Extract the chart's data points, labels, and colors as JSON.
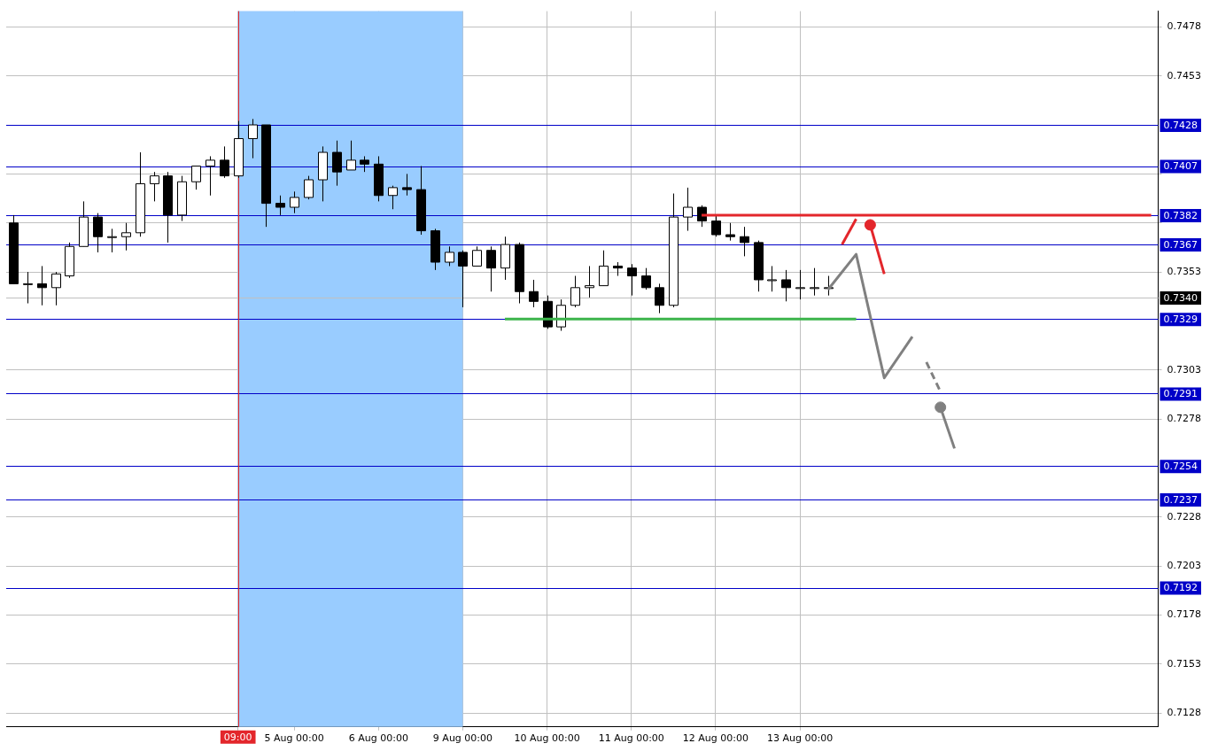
{
  "chart_data": {
    "type": "candlestick",
    "categories": [
      null,
      null,
      null,
      null,
      null,
      null,
      null,
      null,
      null,
      null,
      null,
      null,
      null,
      null,
      null,
      null,
      "09:00",
      null,
      null,
      null,
      "5 Aug 00:00",
      null,
      null,
      null,
      null,
      null,
      "6 Aug 00:00",
      null,
      null,
      null,
      null,
      null,
      "9 Aug 00:00",
      null,
      null,
      null,
      null,
      null,
      "10 Aug 00:00",
      null,
      null,
      null,
      null,
      null,
      "11 Aug 00:00",
      null,
      null,
      null,
      null,
      null,
      "12 Aug 00:00",
      null,
      null,
      null,
      null,
      null,
      "13 Aug 00:00",
      null,
      null,
      null,
      null,
      null,
      null,
      null,
      null,
      null,
      null,
      null,
      null,
      null,
      null,
      null,
      null,
      null,
      null,
      null,
      null,
      null,
      null,
      null,
      null,
      null
    ],
    "ohlc": [
      [
        0.7378,
        0.7382,
        0.7347,
        0.7347
      ],
      [
        0.7347,
        0.7353,
        0.7337,
        0.7347
      ],
      [
        0.7347,
        0.7356,
        0.7336,
        0.7345
      ],
      [
        0.7345,
        0.7353,
        0.7336,
        0.7352
      ],
      [
        0.7351,
        0.7368,
        0.735,
        0.7366
      ],
      [
        0.7366,
        0.7389,
        0.7366,
        0.7381
      ],
      [
        0.7381,
        0.7383,
        0.7363,
        0.7371
      ],
      [
        0.7371,
        0.7375,
        0.7363,
        0.7371
      ],
      [
        0.7371,
        0.7378,
        0.7364,
        0.7373
      ],
      [
        0.7373,
        0.7414,
        0.7371,
        0.7398
      ],
      [
        0.7398,
        0.7404,
        0.7389,
        0.7402
      ],
      [
        0.7402,
        0.7404,
        0.7368,
        0.7382
      ],
      [
        0.7382,
        0.7402,
        0.7379,
        0.7399
      ],
      [
        0.7399,
        0.7407,
        0.7395,
        0.7407
      ],
      [
        0.7407,
        0.7412,
        0.7392,
        0.741
      ],
      [
        0.741,
        0.7417,
        0.7401,
        0.7402
      ],
      [
        0.7402,
        0.743,
        0.7401,
        0.7421
      ],
      [
        0.7421,
        0.7431,
        0.7411,
        0.7428
      ],
      [
        0.7428,
        0.7428,
        0.7376,
        0.7388
      ],
      [
        0.7388,
        0.7392,
        0.7382,
        0.7386
      ],
      [
        0.7386,
        0.7394,
        0.7383,
        0.7391
      ],
      [
        0.7391,
        0.7402,
        0.739,
        0.74
      ],
      [
        0.74,
        0.7417,
        0.7389,
        0.7414
      ],
      [
        0.7414,
        0.742,
        0.7397,
        0.7404
      ],
      [
        0.7405,
        0.742,
        0.7405,
        0.741
      ],
      [
        0.741,
        0.7412,
        0.7404,
        0.7408
      ],
      [
        0.7408,
        0.7412,
        0.7389,
        0.7392
      ],
      [
        0.7392,
        0.7397,
        0.7385,
        0.7396
      ],
      [
        0.7396,
        0.7403,
        0.7392,
        0.7395
      ],
      [
        0.7395,
        0.7407,
        0.7372,
        0.7374
      ],
      [
        0.7374,
        0.7375,
        0.7354,
        0.7358
      ],
      [
        0.7358,
        0.7366,
        0.7356,
        0.7363
      ],
      [
        0.7363,
        0.7364,
        0.7335,
        0.7356
      ],
      [
        0.7356,
        0.7366,
        0.7356,
        0.7364
      ],
      [
        0.7364,
        0.7366,
        0.7343,
        0.7355
      ],
      [
        0.7355,
        0.7371,
        0.7349,
        0.7367
      ],
      [
        0.7367,
        0.7368,
        0.7337,
        0.7343
      ],
      [
        0.7343,
        0.7349,
        0.7335,
        0.7338
      ],
      [
        0.7338,
        0.7341,
        0.7324,
        0.7325
      ],
      [
        0.7325,
        0.7339,
        0.7323,
        0.7336
      ],
      [
        0.7336,
        0.7351,
        0.7335,
        0.7345
      ],
      [
        0.7345,
        0.7356,
        0.734,
        0.7346
      ],
      [
        0.7346,
        0.7364,
        0.7346,
        0.7356
      ],
      [
        0.7356,
        0.7358,
        0.7351,
        0.7355
      ],
      [
        0.7355,
        0.7357,
        0.7341,
        0.7351
      ],
      [
        0.7351,
        0.7355,
        0.7344,
        0.7345
      ],
      [
        0.7345,
        0.7347,
        0.7332,
        0.7336
      ],
      [
        0.7336,
        0.7393,
        0.7335,
        0.7381
      ],
      [
        0.7381,
        0.7396,
        0.7374,
        0.7386
      ],
      [
        0.7386,
        0.7387,
        0.7376,
        0.7379
      ],
      [
        0.7379,
        0.7382,
        0.7371,
        0.7372
      ],
      [
        0.7372,
        0.7378,
        0.7369,
        0.7371
      ],
      [
        0.7371,
        0.7376,
        0.7361,
        0.7368
      ],
      [
        0.7368,
        0.7369,
        0.7343,
        0.7349
      ],
      [
        0.7349,
        0.7356,
        0.7343,
        0.7349
      ],
      [
        0.7349,
        0.7354,
        0.7338,
        0.7345
      ],
      [
        0.7345,
        0.7354,
        0.7339,
        0.7345
      ],
      [
        0.7345,
        0.7355,
        0.7341,
        0.7345
      ],
      [
        0.7345,
        0.7351,
        0.7341,
        0.7345
      ],
      null,
      null,
      null,
      null,
      null,
      null,
      null,
      null,
      null,
      null,
      null,
      null,
      null,
      null,
      null,
      null,
      null,
      null,
      null,
      null,
      null,
      null,
      null
    ],
    "series": [
      {
        "type": "line",
        "color": "#e3262b",
        "values": [
          null,
          null,
          null,
          null,
          null,
          null,
          null,
          null,
          null,
          null,
          null,
          null,
          null,
          null,
          null,
          null,
          null,
          null,
          null,
          null,
          null,
          null,
          null,
          null,
          null,
          null,
          null,
          null,
          null,
          null,
          null,
          null,
          null,
          null,
          null,
          null,
          null,
          null,
          null,
          null,
          null,
          null,
          null,
          null,
          null,
          null,
          null,
          null,
          null,
          0.7382,
          null,
          null,
          null,
          null,
          null,
          null,
          null,
          null,
          null,
          null,
          null,
          null,
          null,
          null,
          null,
          null,
          null,
          null,
          null,
          null,
          null,
          null,
          null,
          null,
          null,
          null,
          null,
          null,
          null,
          null,
          null,
          0.7382
        ]
      },
      {
        "type": "line",
        "color": "#3cb44b",
        "values": [
          null,
          null,
          null,
          null,
          null,
          null,
          null,
          null,
          null,
          null,
          null,
          null,
          null,
          null,
          null,
          null,
          null,
          null,
          null,
          null,
          null,
          null,
          null,
          null,
          null,
          null,
          null,
          null,
          null,
          null,
          null,
          null,
          null,
          null,
          null,
          0.7329,
          null,
          null,
          null,
          null,
          null,
          null,
          null,
          null,
          null,
          null,
          null,
          null,
          null,
          null,
          null,
          null,
          null,
          null,
          null,
          null,
          null,
          null,
          null,
          null,
          0.7329,
          null,
          null,
          null,
          null,
          null,
          null,
          null,
          null,
          null,
          null,
          null,
          null,
          null,
          null,
          null,
          null,
          null,
          null,
          null,
          null,
          null
        ]
      },
      {
        "type": "line",
        "color": "#808080",
        "values": [
          null,
          null,
          null,
          null,
          null,
          null,
          null,
          null,
          null,
          null,
          null,
          null,
          null,
          null,
          null,
          null,
          null,
          null,
          null,
          null,
          null,
          null,
          null,
          null,
          null,
          null,
          null,
          null,
          null,
          null,
          null,
          null,
          null,
          null,
          null,
          null,
          null,
          null,
          null,
          null,
          null,
          null,
          null,
          null,
          null,
          null,
          null,
          null,
          null,
          null,
          null,
          null,
          null,
          null,
          null,
          null,
          null,
          null,
          0.7344,
          null,
          0.7362,
          null,
          0.7299,
          null,
          0.732,
          null,
          null,
          null,
          null,
          null,
          null,
          null,
          null,
          null,
          null,
          null,
          null,
          null,
          null,
          null,
          null,
          null
        ]
      },
      {
        "type": "line",
        "color": "#e3262b",
        "values": [
          null,
          null,
          null,
          null,
          null,
          null,
          null,
          null,
          null,
          null,
          null,
          null,
          null,
          null,
          null,
          null,
          null,
          null,
          null,
          null,
          null,
          null,
          null,
          null,
          null,
          null,
          null,
          null,
          null,
          null,
          null,
          null,
          null,
          null,
          null,
          null,
          null,
          null,
          null,
          null,
          null,
          null,
          null,
          null,
          null,
          null,
          null,
          null,
          null,
          null,
          null,
          null,
          null,
          null,
          null,
          null,
          null,
          null,
          null,
          0.7367,
          0.738,
          null,
          null,
          null,
          null,
          null,
          null,
          null,
          null,
          null,
          null,
          null,
          null,
          null,
          null,
          null,
          null,
          null,
          null,
          null,
          null,
          null
        ]
      },
      {
        "type": "line",
        "color": "#e3262b",
        "values": [
          null,
          null,
          null,
          null,
          null,
          null,
          null,
          null,
          null,
          null,
          null,
          null,
          null,
          null,
          null,
          null,
          null,
          null,
          null,
          null,
          null,
          null,
          null,
          null,
          null,
          null,
          null,
          null,
          null,
          null,
          null,
          null,
          null,
          null,
          null,
          null,
          null,
          null,
          null,
          null,
          null,
          null,
          null,
          null,
          null,
          null,
          null,
          null,
          null,
          null,
          null,
          null,
          null,
          null,
          null,
          null,
          null,
          null,
          null,
          null,
          null,
          0.7377,
          0.7352,
          null,
          null,
          null,
          null,
          null,
          null,
          null,
          null,
          null,
          null,
          null,
          null,
          null,
          null,
          null,
          null,
          null,
          null,
          null
        ]
      },
      {
        "type": "scatter",
        "color": "#e3262b",
        "marker": "circle",
        "values": [
          null,
          null,
          null,
          null,
          null,
          null,
          null,
          null,
          null,
          null,
          null,
          null,
          null,
          null,
          null,
          null,
          null,
          null,
          null,
          null,
          null,
          null,
          null,
          null,
          null,
          null,
          null,
          null,
          null,
          null,
          null,
          null,
          null,
          null,
          null,
          null,
          null,
          null,
          null,
          null,
          null,
          null,
          null,
          null,
          null,
          null,
          null,
          null,
          null,
          null,
          null,
          null,
          null,
          null,
          null,
          null,
          null,
          null,
          null,
          null,
          null,
          0.7377,
          null,
          null,
          null,
          null,
          null,
          null,
          null,
          null,
          null,
          null,
          null,
          null,
          null,
          null,
          null,
          null,
          null,
          null,
          null,
          null
        ]
      },
      {
        "type": "line",
        "color": "#808080",
        "line_style": "dashed",
        "values": [
          null,
          null,
          null,
          null,
          null,
          null,
          null,
          null,
          null,
          null,
          null,
          null,
          null,
          null,
          null,
          null,
          null,
          null,
          null,
          null,
          null,
          null,
          null,
          null,
          null,
          null,
          null,
          null,
          null,
          null,
          null,
          null,
          null,
          null,
          null,
          null,
          null,
          null,
          null,
          null,
          null,
          null,
          null,
          null,
          null,
          null,
          null,
          null,
          null,
          null,
          null,
          null,
          null,
          null,
          null,
          null,
          null,
          null,
          null,
          null,
          null,
          null,
          null,
          null,
          null,
          0.7307,
          0.7292,
          null,
          null,
          null,
          null,
          null,
          null,
          null,
          null,
          null,
          null,
          null,
          null,
          null,
          null,
          null
        ]
      },
      {
        "type": "line",
        "color": "#808080",
        "values": [
          null,
          null,
          null,
          null,
          null,
          null,
          null,
          null,
          null,
          null,
          null,
          null,
          null,
          null,
          null,
          null,
          null,
          null,
          null,
          null,
          null,
          null,
          null,
          null,
          null,
          null,
          null,
          null,
          null,
          null,
          null,
          null,
          null,
          null,
          null,
          null,
          null,
          null,
          null,
          null,
          null,
          null,
          null,
          null,
          null,
          null,
          null,
          null,
          null,
          null,
          null,
          null,
          null,
          null,
          null,
          null,
          null,
          null,
          null,
          null,
          null,
          null,
          null,
          null,
          null,
          null,
          0.7284,
          0.7263,
          null,
          null,
          null,
          null,
          null,
          null,
          null,
          null,
          null,
          null,
          null,
          null,
          null,
          null
        ]
      },
      {
        "type": "scatter",
        "color": "#808080",
        "marker": "circle",
        "values": [
          null,
          null,
          null,
          null,
          null,
          null,
          null,
          null,
          null,
          null,
          null,
          null,
          null,
          null,
          null,
          null,
          null,
          null,
          null,
          null,
          null,
          null,
          null,
          null,
          null,
          null,
          null,
          null,
          null,
          null,
          null,
          null,
          null,
          null,
          null,
          null,
          null,
          null,
          null,
          null,
          null,
          null,
          null,
          null,
          null,
          null,
          null,
          null,
          null,
          null,
          null,
          null,
          null,
          null,
          null,
          null,
          null,
          null,
          null,
          null,
          null,
          null,
          null,
          null,
          null,
          null,
          0.7284,
          null,
          null,
          null,
          null,
          null,
          null,
          null,
          null,
          null,
          null,
          null,
          null,
          null,
          null,
          null
        ]
      }
    ],
    "ylim": [
      0.7121,
      0.7486
    ],
    "yticks": [
      0.7128,
      0.7153,
      0.7178,
      0.7203,
      0.7228,
      0.7278,
      0.7303,
      0.7353,
      {
        "value": 0.7378,
        "label": null
      },
      {
        "value": 0.7403,
        "label": null
      },
      0.7453,
      0.7478
    ],
    "grid": true,
    "legend": false,
    "marker": "none",
    "line_style": "solid",
    "bands": [
      {
        "axis": "x",
        "from": "09:00",
        "to": "9 Aug 00:00",
        "color": "#99ccff"
      }
    ],
    "ref_lines": [
      {
        "axis": "y",
        "value": 0.7428,
        "label": "0.7428",
        "color": "#0000c8"
      },
      {
        "axis": "y",
        "value": 0.7407,
        "label": "0.7407",
        "color": "#0000c8"
      },
      {
        "axis": "y",
        "value": 0.7382,
        "label": "0.7382",
        "color": "#0000c8"
      },
      {
        "axis": "y",
        "value": 0.7367,
        "label": "0.7367",
        "color": "#0000c8"
      },
      {
        "axis": "y",
        "value": 0.734,
        "label": "0.7340",
        "color": "#c0c0c0"
      },
      {
        "axis": "y",
        "value": 0.7329,
        "label": "0.7329",
        "color": "#0000c8"
      },
      {
        "axis": "y",
        "value": 0.7291,
        "label": "0.7291",
        "color": "#0000c8"
      },
      {
        "axis": "y",
        "value": 0.7254,
        "label": "0.7254",
        "color": "#0000c8"
      },
      {
        "axis": "y",
        "value": 0.7237,
        "label": "0.7237",
        "color": "#0000c8"
      },
      {
        "axis": "y",
        "value": 0.7192,
        "label": "0.7192",
        "color": "#0000c8"
      },
      {
        "axis": "x",
        "value": "09:00",
        "color": "#e3262b"
      }
    ]
  }
}
